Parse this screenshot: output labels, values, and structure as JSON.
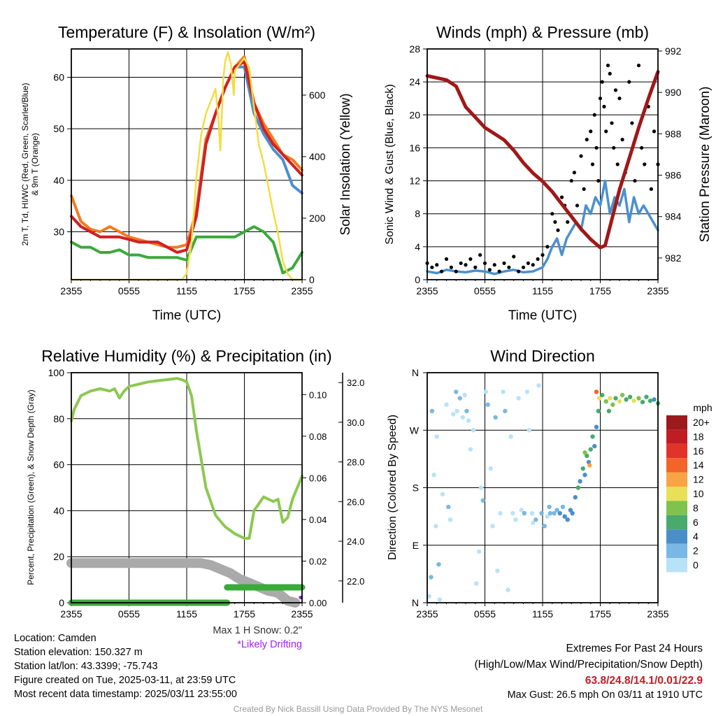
{
  "chart_data": [
    {
      "type": "line",
      "title": "Temperature (F) & Insolation (W/m²)",
      "xlabel": "Time (UTC)",
      "ylabel": "2m T, Td, HI/WC (Red, Green, Scarlet/Blue)",
      "ylabel2": "& 9m T (Orange)",
      "y2label": "Solar Insolation (Yellow)",
      "xticks": [
        "2355",
        "0555",
        "1155",
        "1755",
        "2355"
      ],
      "ylim": [
        20.7,
        65.5
      ],
      "yticks": [
        30,
        40,
        50,
        60
      ],
      "y2lim": [
        0,
        750
      ],
      "y2ticks": [
        0,
        200,
        400,
        600
      ],
      "x": [
        0,
        1,
        2,
        3,
        4,
        5,
        6,
        7,
        8,
        9,
        10,
        11,
        12,
        13,
        14,
        15,
        16,
        17,
        18,
        19,
        20,
        21,
        22,
        23,
        24
      ],
      "series": [
        {
          "name": "9m T",
          "color": "#f47a20",
          "values": [
            37,
            32,
            30.5,
            30,
            31,
            30,
            29,
            28.5,
            28,
            27.5,
            27,
            27,
            27.5,
            34,
            48,
            53,
            58,
            62,
            64,
            55,
            51,
            48,
            45,
            44,
            42
          ]
        },
        {
          "name": "HI/WC",
          "color": "#4a90d0",
          "values": [
            33,
            31,
            30,
            29,
            29,
            29,
            28.5,
            28,
            28,
            28,
            27,
            26,
            26.5,
            33,
            47,
            53,
            58,
            62,
            62,
            53,
            49,
            46,
            44,
            39,
            37.5
          ]
        },
        {
          "name": "2m T",
          "color": "#d42020",
          "values": [
            33,
            31,
            30,
            29,
            29,
            29,
            28.5,
            28,
            28,
            28,
            27,
            26,
            26.5,
            33,
            47,
            53,
            58,
            62,
            63,
            55,
            50,
            47,
            45,
            43,
            41
          ]
        },
        {
          "name": "2m Td",
          "color": "#3aaa3a",
          "values": [
            28,
            27,
            27,
            26,
            26,
            26.5,
            25.5,
            25.5,
            25,
            25,
            25,
            25,
            24.5,
            29,
            29,
            29,
            29,
            29,
            30,
            31,
            30,
            28,
            22,
            23,
            26
          ]
        },
        {
          "name": "Solar",
          "color": "#f5dc40",
          "axis": "y2",
          "x": [
            0,
            11.5,
            12,
            12.5,
            13,
            13.5,
            14,
            14.5,
            15,
            15.3,
            15.5,
            15.8,
            16,
            16.3,
            16.6,
            16.9,
            17,
            17.5,
            18,
            18.5,
            19,
            19.5,
            20,
            20.5,
            21,
            21.5,
            22,
            22.5,
            23,
            24
          ],
          "values": [
            0,
            0,
            20,
            120,
            330,
            470,
            540,
            580,
            620,
            520,
            420,
            650,
            710,
            740,
            700,
            600,
            680,
            700,
            720,
            690,
            560,
            440,
            380,
            300,
            220,
            150,
            60,
            20,
            0,
            0
          ]
        }
      ]
    },
    {
      "type": "line",
      "title": "Winds (mph) & Pressure (mb)",
      "xlabel": "Time (UTC)",
      "ylabel": "Sonic Wind & Gust (Blue, Black)",
      "y2label": "Station Pressure (Maroon)",
      "xticks": [
        "2355",
        "0555",
        "1155",
        "1755",
        "2355"
      ],
      "ylim": [
        0,
        28
      ],
      "yticks": [
        0,
        4,
        8,
        12,
        16,
        20,
        24,
        28
      ],
      "y2lim": [
        980.95,
        992.1
      ],
      "y2ticks": [
        982,
        984,
        986,
        988,
        990,
        992
      ],
      "pressure": {
        "color": "#a01818",
        "x": [
          0,
          2,
          3,
          4,
          5,
          6,
          7,
          8,
          9,
          10,
          11,
          12,
          13,
          14,
          15,
          16,
          17,
          18,
          18.5,
          19,
          20,
          21,
          22,
          23,
          24
        ],
        "values": [
          990.8,
          990.6,
          990.3,
          989.3,
          988.8,
          988.3,
          988.0,
          987.7,
          987.2,
          986.6,
          986.1,
          985.7,
          985.2,
          984.6,
          984.0,
          983.4,
          982.9,
          982.5,
          982.6,
          983.5,
          985.3,
          986.8,
          988.3,
          989.7,
          991.0
        ]
      },
      "wind": {
        "color": "#4a90d0",
        "x": [
          0,
          1,
          2,
          3,
          4,
          5,
          6,
          7,
          8,
          9,
          10,
          11,
          12,
          12.5,
          13,
          13.5,
          14,
          14.5,
          15,
          15.5,
          16,
          16.5,
          17,
          17.5,
          18,
          18.5,
          19,
          19.5,
          20,
          20.5,
          21,
          21.5,
          22,
          22.5,
          23,
          23.5,
          24
        ],
        "values": [
          1,
          0.8,
          1.2,
          1,
          0.9,
          1.1,
          1,
          0.7,
          1,
          1.2,
          0.9,
          1,
          1.5,
          2.5,
          4,
          5,
          3,
          5,
          6,
          7,
          6,
          9,
          8,
          10,
          9,
          12,
          8,
          10,
          9,
          11,
          7,
          10,
          8,
          9,
          8,
          7,
          6
        ]
      },
      "gust": {
        "color": "#000",
        "x": [
          0,
          0.5,
          1,
          1.5,
          2,
          2.5,
          3,
          3.5,
          4,
          4.5,
          5,
          5.5,
          6,
          6.5,
          7,
          7.5,
          8,
          8.5,
          9,
          9.5,
          10,
          10.5,
          11,
          11.5,
          12,
          12.5,
          13,
          13.3,
          13.6,
          14,
          14.3,
          14.6,
          15,
          15.3,
          15.6,
          16,
          16.3,
          16.6,
          17,
          17.2,
          17.4,
          17.6,
          17.8,
          18,
          18.2,
          18.4,
          18.6,
          18.8,
          19,
          19.2,
          19.4,
          19.6,
          19.8,
          20,
          20.3,
          20.6,
          21,
          21.3,
          21.6,
          22,
          22.3,
          22.6,
          23,
          23.3,
          23.6,
          24
        ],
        "values": [
          2,
          1.5,
          1.8,
          1,
          2.5,
          1.5,
          1,
          2,
          1.8,
          2.5,
          1.5,
          3,
          2,
          1.2,
          1.8,
          1,
          2,
          1.5,
          2.8,
          1,
          1.5,
          2,
          1.8,
          2.5,
          3,
          4,
          8,
          7,
          6,
          10,
          9,
          7,
          12,
          13,
          9,
          15,
          11,
          17,
          18,
          14,
          20,
          16,
          12,
          22,
          24,
          21,
          18,
          26,
          25,
          19,
          16,
          23,
          14,
          22,
          17,
          13,
          24,
          19,
          12,
          26,
          16,
          14,
          21,
          11,
          18,
          14
        ]
      }
    },
    {
      "type": "line",
      "title": "Relative Humidity (%) & Precipitation (in)",
      "ylabel": "Percent, Precipitation (Green), & Snow Depth (Gray)",
      "xticks": [
        "2355",
        "0555",
        "1155",
        "1755",
        "2355"
      ],
      "ylim": [
        0,
        100
      ],
      "yticks": [
        0,
        20,
        40,
        60,
        80,
        100
      ],
      "y2lim": [
        0,
        0.1105
      ],
      "y2ticks": [
        "0.00",
        "0.02",
        "0.04",
        "0.06",
        "0.08",
        "0.10"
      ],
      "y3lim": [
        20.9,
        32.5
      ],
      "y3ticks": [
        "22.0",
        "24.0",
        "26.0",
        "28.0",
        "30.0",
        "32.0"
      ],
      "rh": {
        "color": "#8cc850",
        "x": [
          0,
          0.3,
          1,
          2,
          3,
          4,
          4.5,
          5,
          5.5,
          6,
          7,
          8,
          9,
          10,
          11,
          11.5,
          12,
          12.5,
          13,
          14,
          15,
          16,
          17,
          18,
          18.5,
          19,
          20,
          21,
          21.5,
          22,
          22.5,
          23,
          24
        ],
        "values": [
          79,
          84,
          90,
          92,
          93,
          92,
          93,
          89,
          92,
          94,
          95,
          96,
          96.5,
          97,
          97.5,
          97,
          96,
          90,
          75,
          50,
          38,
          33,
          30,
          28,
          28,
          40,
          46,
          44,
          45,
          35,
          37,
          45,
          55
        ]
      },
      "precip": {
        "color": "#3aaa3a",
        "segments": [
          {
            "x": [
              0,
              16.2
            ],
            "value": 0
          },
          {
            "x": [
              16.2,
              24
            ],
            "value": 0.0074
          }
        ]
      },
      "snow": {
        "color": "#aaaaaa",
        "x": [
          0,
          12,
          13.5,
          14.5,
          15.5,
          16.5,
          17.5,
          18.5,
          19.5,
          20.5,
          21.5,
          22.5,
          23.3
        ],
        "values": [
          22.9,
          22.9,
          22.9,
          22.8,
          22.6,
          22.4,
          22.1,
          21.9,
          21.7,
          21.5,
          21.4,
          21.0,
          20.9
        ]
      },
      "drift_marker_color": "#8020d0"
    },
    {
      "type": "scatter",
      "title": "Wind Direction",
      "ylabel": "Direction (Colored By Speed)",
      "xticks": [
        "2355",
        "0555",
        "1155",
        "1755",
        "2355"
      ],
      "yticks": [
        "N",
        "E",
        "S",
        "W",
        "N"
      ],
      "ylim": [
        0,
        360
      ],
      "legend": {
        "title": "mph",
        "placement": "right",
        "labels": [
          "20+",
          "18",
          "16",
          "14",
          "12",
          "10",
          "8",
          "6",
          "4",
          "2",
          "0"
        ],
        "colors": [
          "#9a1a1e",
          "#c01c24",
          "#e03428",
          "#f26428",
          "#f9a444",
          "#e8e058",
          "#80c24c",
          "#48aa6c",
          "#4a8ec8",
          "#78b8e4",
          "#b8e2f8"
        ]
      },
      "points": [
        [
          0.2,
          10,
          0
        ],
        [
          0.4,
          40,
          1
        ],
        [
          0.7,
          200,
          0
        ],
        [
          0.9,
          120,
          0
        ],
        [
          1.2,
          60,
          1
        ],
        [
          0.5,
          300,
          1
        ],
        [
          1,
          260,
          0
        ],
        [
          1.3,
          5,
          0
        ],
        [
          1.6,
          170,
          0
        ],
        [
          2,
          310,
          0
        ],
        [
          2.2,
          150,
          1
        ],
        [
          2.4,
          130,
          0
        ],
        [
          2.7,
          295,
          0
        ],
        [
          3,
          330,
          1
        ],
        [
          3.1,
          300,
          0
        ],
        [
          3.4,
          320,
          1
        ],
        [
          3.7,
          290,
          0
        ],
        [
          3.9,
          325,
          0
        ],
        [
          4.1,
          300,
          1
        ],
        [
          4.3,
          285,
          0
        ],
        [
          4.5,
          240,
          0
        ],
        [
          4.8,
          270,
          0
        ],
        [
          5.1,
          30,
          0
        ],
        [
          5.4,
          80,
          0
        ],
        [
          5.6,
          180,
          0
        ],
        [
          5.8,
          160,
          1
        ],
        [
          6.1,
          330,
          0
        ],
        [
          6.3,
          310,
          1
        ],
        [
          6.6,
          210,
          0
        ],
        [
          6.8,
          120,
          0
        ],
        [
          7.1,
          290,
          1
        ],
        [
          7.3,
          50,
          0
        ],
        [
          7.6,
          140,
          0
        ],
        [
          7.9,
          330,
          0
        ],
        [
          8.1,
          300,
          1
        ],
        [
          8.4,
          20,
          0
        ],
        [
          8.7,
          260,
          0
        ],
        [
          8.9,
          140,
          0
        ],
        [
          9.2,
          130,
          0
        ],
        [
          9.5,
          320,
          0
        ],
        [
          9.8,
          145,
          0
        ],
        [
          10.1,
          140,
          1
        ],
        [
          10.4,
          330,
          0
        ],
        [
          10.6,
          270,
          0
        ],
        [
          10.9,
          140,
          0
        ],
        [
          11.3,
          130,
          1
        ],
        [
          11.6,
          340,
          0
        ],
        [
          11.9,
          140,
          1
        ],
        [
          12.2,
          120,
          1
        ],
        [
          12.5,
          135,
          0
        ],
        [
          12.8,
          140,
          1
        ],
        [
          13.2,
          140,
          2
        ],
        [
          13.5,
          145,
          2
        ],
        [
          13.8,
          140,
          3
        ],
        [
          14.1,
          150,
          2
        ],
        [
          14.3,
          135,
          3
        ],
        [
          14.6,
          130,
          4
        ],
        [
          14.9,
          145,
          4
        ],
        [
          15.1,
          140,
          3
        ],
        [
          15.4,
          165,
          4
        ],
        [
          15.7,
          180,
          5
        ],
        [
          15.9,
          190,
          3
        ],
        [
          16.2,
          210,
          6
        ],
        [
          16.4,
          200,
          4
        ],
        [
          16.6,
          230,
          5
        ],
        [
          16.8,
          220,
          4
        ],
        [
          17,
          240,
          6
        ],
        [
          17.2,
          260,
          5
        ],
        [
          17.4,
          245,
          3
        ],
        [
          17.6,
          275,
          4
        ],
        [
          17.8,
          300,
          6
        ],
        [
          17.6,
          330,
          13
        ],
        [
          17.9,
          320,
          10
        ],
        [
          18.2,
          325,
          6
        ],
        [
          18.6,
          315,
          8
        ],
        [
          19,
          320,
          9
        ],
        [
          19.3,
          310,
          7
        ],
        [
          19.6,
          320,
          6
        ],
        [
          20,
          315,
          10
        ],
        [
          20.3,
          325,
          7
        ],
        [
          20.7,
          318,
          6
        ],
        [
          21.1,
          322,
          5
        ],
        [
          21.5,
          316,
          9
        ],
        [
          22,
          320,
          7
        ],
        [
          22.4,
          314,
          6
        ],
        [
          22.8,
          322,
          5
        ],
        [
          23.2,
          316,
          6
        ],
        [
          23.6,
          318,
          4
        ],
        [
          24,
          312,
          5
        ],
        [
          18.9,
          300,
          6
        ],
        [
          16.4,
          235,
          8
        ],
        [
          16.9,
          215,
          11
        ],
        [
          12.7,
          150,
          2
        ],
        [
          11,
          125,
          0
        ]
      ]
    }
  ],
  "footer": {
    "location": "Location: Camden",
    "elevation": "Station elevation: 150.327 m",
    "latlon": "Station lat/lon: 43.3399; -75.743",
    "created": "Figure created on Tue, 2025-03-11, at 23:59 UTC",
    "recent": "Most recent data timestamp: 2025/03/11 23:55:00",
    "max_snow": "Max 1 H Snow: 0.2\"",
    "drifting": "*Likely Drifting",
    "extremes_title": "Extremes For Past 24 Hours",
    "extremes_sub": "(High/Low/Max Wind/Precipitation/Snow Depth)",
    "extremes_values": "63.8/24.8/14.1/0.01/22.9",
    "max_gust": "Max Gust: 26.5 mph On 03/11 at 1910 UTC",
    "credit": "Created By Nick Bassill Using Data Provided By The NYS Mesonet",
    "extremes_color": "#c01c24",
    "drift_color": "#a020f0"
  }
}
